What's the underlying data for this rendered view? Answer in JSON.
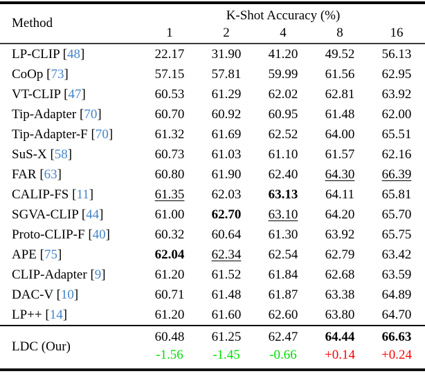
{
  "colors": {
    "cite": "#4585C9",
    "positive_delta": "#FF0000",
    "negative_delta": "#00E000",
    "text": "#000000"
  },
  "punctuation": {
    "cite_open": "[",
    "cite_close": "]"
  },
  "header": {
    "method_label": "Method",
    "group_label": "K-Shot Accuracy (%)",
    "shots": [
      "1",
      "2",
      "4",
      "8",
      "16"
    ]
  },
  "rows": [
    {
      "method": "LP-CLIP",
      "cite": "48",
      "values": [
        {
          "text": "22.17",
          "style": "normal"
        },
        {
          "text": "31.90",
          "style": "normal"
        },
        {
          "text": "41.20",
          "style": "normal"
        },
        {
          "text": "49.52",
          "style": "normal"
        },
        {
          "text": "56.13",
          "style": "normal"
        }
      ]
    },
    {
      "method": "CoOp",
      "cite": "73",
      "values": [
        {
          "text": "57.15",
          "style": "normal"
        },
        {
          "text": "57.81",
          "style": "normal"
        },
        {
          "text": "59.99",
          "style": "normal"
        },
        {
          "text": "61.56",
          "style": "normal"
        },
        {
          "text": "62.95",
          "style": "normal"
        }
      ]
    },
    {
      "method": "VT-CLIP",
      "cite": "47",
      "values": [
        {
          "text": "60.53",
          "style": "normal"
        },
        {
          "text": "61.29",
          "style": "normal"
        },
        {
          "text": "62.02",
          "style": "normal"
        },
        {
          "text": "62.81",
          "style": "normal"
        },
        {
          "text": "63.92",
          "style": "normal"
        }
      ]
    },
    {
      "method": "Tip-Adapter",
      "cite": "70",
      "values": [
        {
          "text": "60.70",
          "style": "normal"
        },
        {
          "text": "60.92",
          "style": "normal"
        },
        {
          "text": "60.95",
          "style": "normal"
        },
        {
          "text": "61.48",
          "style": "normal"
        },
        {
          "text": "62.00",
          "style": "normal"
        }
      ]
    },
    {
      "method": "Tip-Adapter-F",
      "cite": "70",
      "values": [
        {
          "text": "61.32",
          "style": "normal"
        },
        {
          "text": "61.69",
          "style": "normal"
        },
        {
          "text": "62.52",
          "style": "normal"
        },
        {
          "text": "64.00",
          "style": "normal"
        },
        {
          "text": "65.51",
          "style": "normal"
        }
      ]
    },
    {
      "method": "SuS-X",
      "cite": "58",
      "values": [
        {
          "text": "60.73",
          "style": "normal"
        },
        {
          "text": "61.03",
          "style": "normal"
        },
        {
          "text": "61.10",
          "style": "normal"
        },
        {
          "text": "61.57",
          "style": "normal"
        },
        {
          "text": "62.16",
          "style": "normal"
        }
      ]
    },
    {
      "method": "FAR",
      "cite": "63",
      "values": [
        {
          "text": "60.80",
          "style": "normal"
        },
        {
          "text": "61.90",
          "style": "normal"
        },
        {
          "text": "62.40",
          "style": "normal"
        },
        {
          "text": "64.30",
          "style": "underline"
        },
        {
          "text": "66.39",
          "style": "underline"
        }
      ]
    },
    {
      "method": "CALIP-FS",
      "cite": "11",
      "values": [
        {
          "text": "61.35",
          "style": "underline"
        },
        {
          "text": "62.03",
          "style": "normal"
        },
        {
          "text": "63.13",
          "style": "bold"
        },
        {
          "text": "64.11",
          "style": "normal"
        },
        {
          "text": "65.81",
          "style": "normal"
        }
      ]
    },
    {
      "method": "SGVA-CLIP",
      "cite": "44",
      "values": [
        {
          "text": "61.00",
          "style": "normal"
        },
        {
          "text": "62.70",
          "style": "bold"
        },
        {
          "text": "63.10",
          "style": "underline"
        },
        {
          "text": "64.20",
          "style": "normal"
        },
        {
          "text": "65.70",
          "style": "normal"
        }
      ]
    },
    {
      "method": "Proto-CLIP-F",
      "cite": "40",
      "values": [
        {
          "text": "60.32",
          "style": "normal"
        },
        {
          "text": "60.64",
          "style": "normal"
        },
        {
          "text": "61.30",
          "style": "normal"
        },
        {
          "text": "63.92",
          "style": "normal"
        },
        {
          "text": "65.75",
          "style": "normal"
        }
      ]
    },
    {
      "method": "APE",
      "cite": "75",
      "values": [
        {
          "text": "62.04",
          "style": "bold"
        },
        {
          "text": "62.34",
          "style": "underline"
        },
        {
          "text": "62.54",
          "style": "normal"
        },
        {
          "text": "62.79",
          "style": "normal"
        },
        {
          "text": "63.42",
          "style": "normal"
        }
      ]
    },
    {
      "method": "CLIP-Adapter",
      "cite": "9",
      "values": [
        {
          "text": "61.20",
          "style": "normal"
        },
        {
          "text": "61.52",
          "style": "normal"
        },
        {
          "text": "61.84",
          "style": "normal"
        },
        {
          "text": "62.68",
          "style": "normal"
        },
        {
          "text": "63.59",
          "style": "normal"
        }
      ]
    },
    {
      "method": "DAC-V",
      "cite": "10",
      "values": [
        {
          "text": "60.71",
          "style": "normal"
        },
        {
          "text": "61.48",
          "style": "normal"
        },
        {
          "text": "61.87",
          "style": "normal"
        },
        {
          "text": "63.38",
          "style": "normal"
        },
        {
          "text": "64.89",
          "style": "normal"
        }
      ]
    },
    {
      "method": "LP++",
      "cite": "14",
      "values": [
        {
          "text": "61.20",
          "style": "normal"
        },
        {
          "text": "61.60",
          "style": "normal"
        },
        {
          "text": "62.60",
          "style": "normal"
        },
        {
          "text": "63.80",
          "style": "normal"
        },
        {
          "text": "64.70",
          "style": "normal"
        }
      ]
    }
  ],
  "ours": {
    "method": "LDC (Our)",
    "values": [
      {
        "text": "60.48",
        "style": "normal"
      },
      {
        "text": "61.25",
        "style": "normal"
      },
      {
        "text": "62.47",
        "style": "normal"
      },
      {
        "text": "64.44",
        "style": "bold"
      },
      {
        "text": "66.63",
        "style": "bold"
      }
    ],
    "deltas": [
      {
        "text": "-1.56",
        "tone": "negative"
      },
      {
        "text": "-1.45",
        "tone": "negative"
      },
      {
        "text": "-0.66",
        "tone": "negative"
      },
      {
        "text": "+0.14",
        "tone": "positive"
      },
      {
        "text": "+0.24",
        "tone": "positive"
      }
    ]
  }
}
